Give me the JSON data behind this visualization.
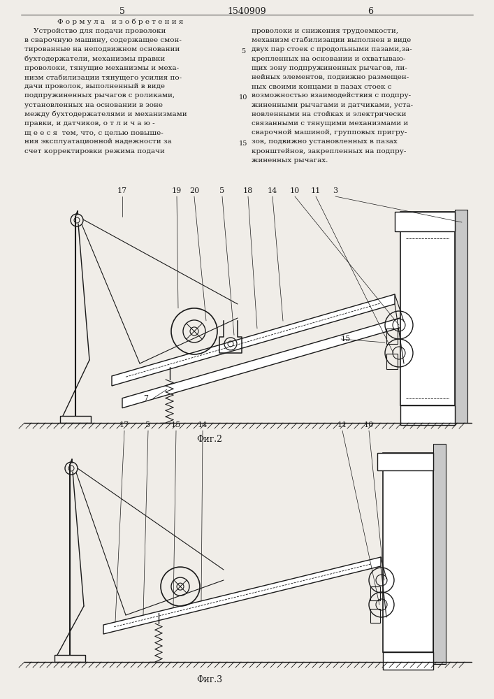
{
  "page_color": "#f0ede8",
  "text_color": "#1a1a1a",
  "fig2_label": "Φиг.2",
  "fig3_label": "Φиг.3",
  "left_lines": [
    "    Устройство для подачи проволоки",
    "в сварочную машину, содержащее смон-",
    "тированные на неподвижном основании",
    "бухтодержатели, механизмы правки",
    "проволоки, тянущие механизмы и меха-",
    "низм стабилизации тянущего усилия по-",
    "дачи проволок, выполненный в виде",
    "подпружиненных рычагов с роликами,",
    "установленных на основании в зоне",
    "между бухтодержателями и механизмами",
    "правки, и датчиков, о т л и ч а ю -",
    "щ е е с я  тем, что, с целью повыше-",
    "ния эксплуатационной надежности за",
    "счет корректировки режима подачи"
  ],
  "right_lines": [
    "проволоки и снижения трудоемкости,",
    "механизм стабилизации выполнен в виде",
    "двух пар стоек с продольными пазами,за-",
    "крепленных на основании и охватываю-",
    "щих зону подпружиненных рычагов, ли-",
    "нейных элементов, подвижно размещен-",
    "ных своими концами в пазах стоек с",
    "возможностью взаимодействия с подпру-",
    "жиненными рычагами и датчиками, уста-",
    "новленными на стойках и электрически",
    "связанными с тянущими механизмами и",
    "сварочной машиной, групповых пригру-",
    "зов, подвижно установленных в пазах",
    "кронштейнов, закрепленных на подпру-",
    "жиненных рычагах."
  ]
}
